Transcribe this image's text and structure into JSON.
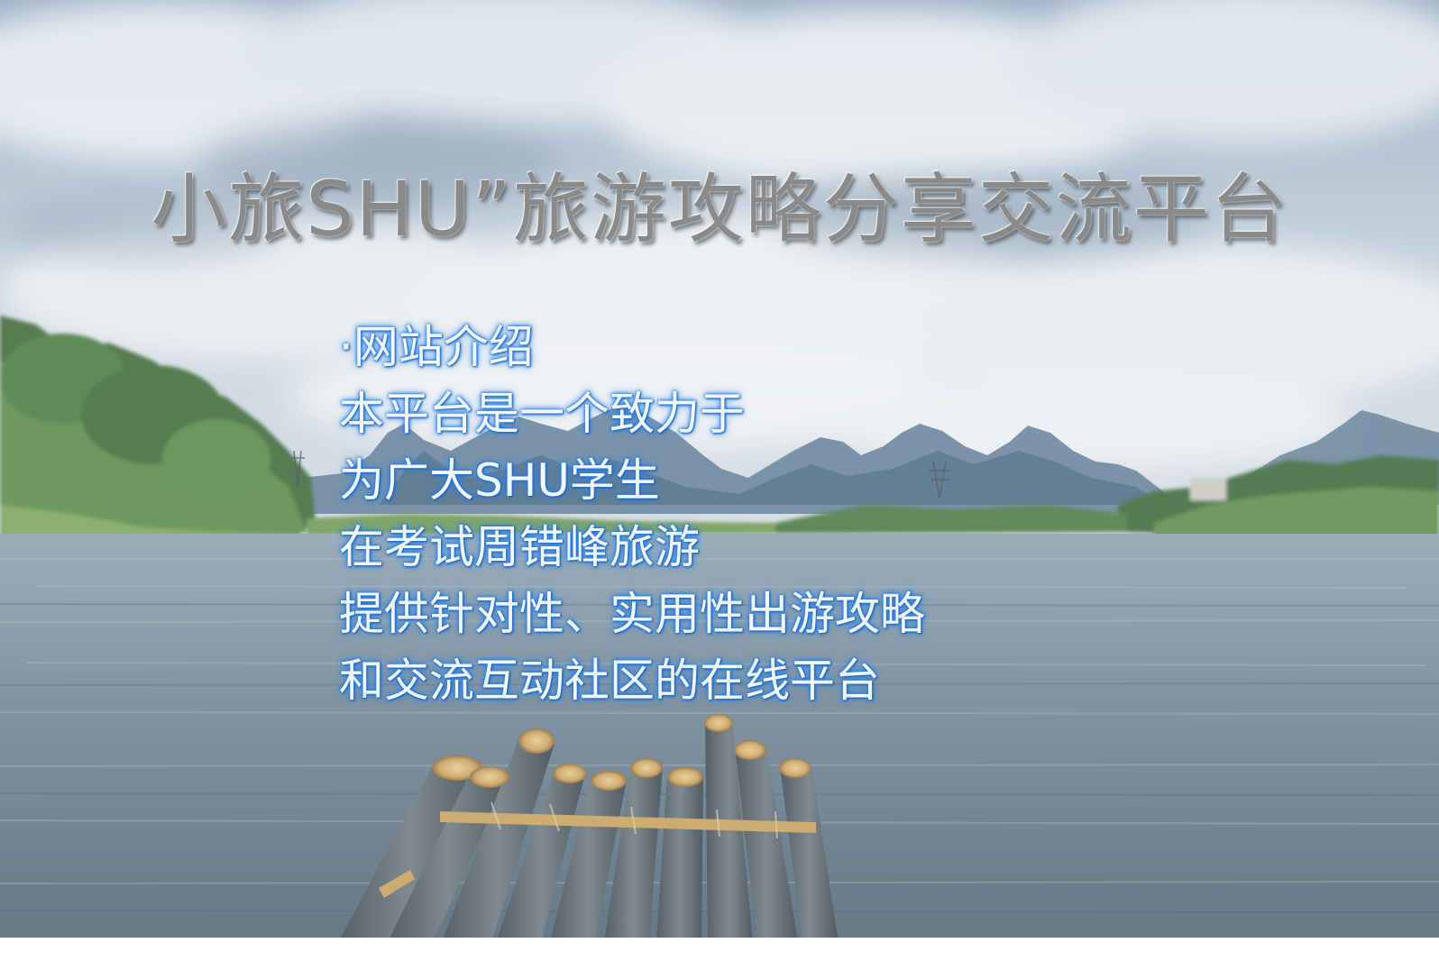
{
  "title": "小旅SHU”旅游攻略分享交流平台",
  "intro": {
    "heading": "·网站介绍",
    "lines": [
      "本平台是一个致力于",
      "为广大SHU学生",
      "在考试周错峰旅游",
      "提供针对性、实用性出游攻略",
      "和交流互动社区的在线平台"
    ]
  },
  "background": {
    "scene": "landscape-river-raft"
  }
}
